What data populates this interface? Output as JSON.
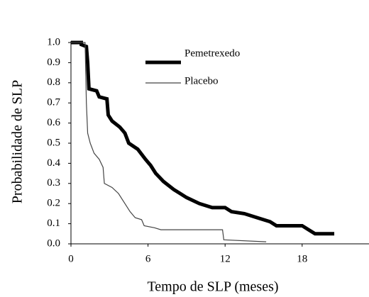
{
  "chart_data": {
    "type": "line",
    "x_label": "Tempo de SLP (meses)",
    "y_label": "Probabilidade de SLP",
    "xlim": [
      0,
      23
    ],
    "ylim": [
      0,
      1
    ],
    "xticks": [
      0,
      6,
      12,
      18
    ],
    "yticks": [
      {
        "value": 0,
        "label": "0.0"
      },
      {
        "value": 0.1,
        "label": "0.1"
      },
      {
        "value": 0.2,
        "label": "0.2"
      },
      {
        "value": 0.3,
        "label": "0.3"
      },
      {
        "value": 0.4,
        "label": "0.4"
      },
      {
        "value": 0.5,
        "label": "0.5"
      },
      {
        "value": 0.6,
        "label": "0.6"
      },
      {
        "value": 0.7,
        "label": "0.7"
      },
      {
        "value": 0.8,
        "label": "0.8"
      },
      {
        "value": 0.9,
        "label": "0.9"
      },
      {
        "value": 1,
        "label": "1.0"
      }
    ],
    "series": [
      {
        "name": "Pemetrexedo",
        "color": "#000000",
        "width": 5,
        "x": [
          0,
          0.8,
          0.8,
          1.2,
          1.3,
          1.4,
          2,
          2.2,
          2.8,
          2.9,
          3.2,
          3.8,
          4.2,
          4.5,
          5.2,
          5.8,
          6.2,
          6.6,
          7.2,
          8,
          9,
          10,
          11,
          12,
          12.5,
          13.5,
          14.5,
          15.5,
          16,
          18,
          18.5,
          19,
          20.5
        ],
        "values": [
          1,
          1,
          0.99,
          0.98,
          0.9,
          0.77,
          0.76,
          0.73,
          0.72,
          0.64,
          0.61,
          0.58,
          0.55,
          0.5,
          0.47,
          0.42,
          0.39,
          0.35,
          0.31,
          0.27,
          0.23,
          0.2,
          0.18,
          0.18,
          0.16,
          0.15,
          0.13,
          0.11,
          0.09,
          0.09,
          0.07,
          0.05,
          0.05
        ]
      },
      {
        "name": "Placebo",
        "color": "#444444",
        "width": 1.2,
        "x": [
          0,
          1.1,
          1.2,
          1.3,
          1.5,
          1.8,
          2.2,
          2.5,
          2.6,
          3.2,
          3.7,
          4.2,
          4.6,
          5,
          5.5,
          5.7,
          6.5,
          7,
          11.8,
          11.9,
          15.2
        ],
        "values": [
          1,
          1,
          0.7,
          0.55,
          0.5,
          0.45,
          0.42,
          0.38,
          0.3,
          0.28,
          0.25,
          0.2,
          0.16,
          0.13,
          0.12,
          0.09,
          0.08,
          0.07,
          0.07,
          0.02,
          0.01
        ]
      }
    ]
  }
}
